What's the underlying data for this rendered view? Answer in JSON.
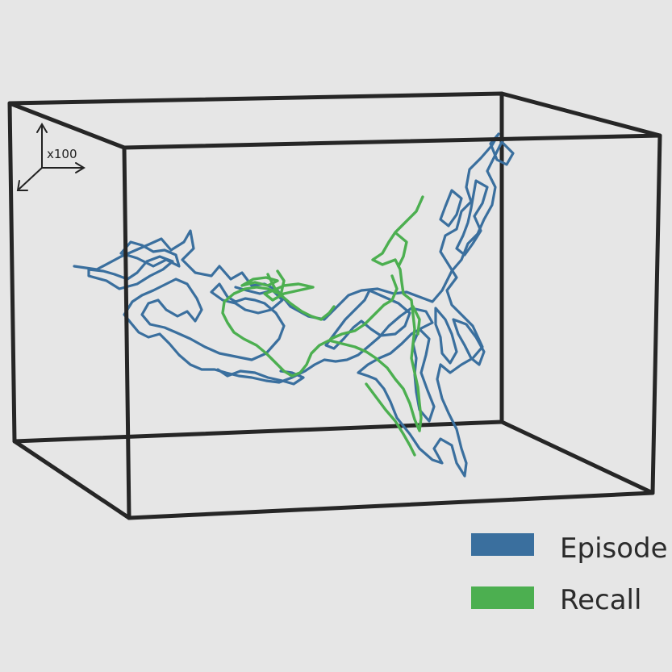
{
  "scale_indicator": {
    "label": "x100"
  },
  "legend": {
    "items": [
      {
        "label": "Episode",
        "color": "#3a6f9e"
      },
      {
        "label": "Recall",
        "color": "#4caf50"
      }
    ]
  },
  "colors": {
    "background": "#e6e6e6",
    "box_edge": "#262626",
    "episode": "#3a6f9e",
    "recall": "#4caf50"
  }
}
